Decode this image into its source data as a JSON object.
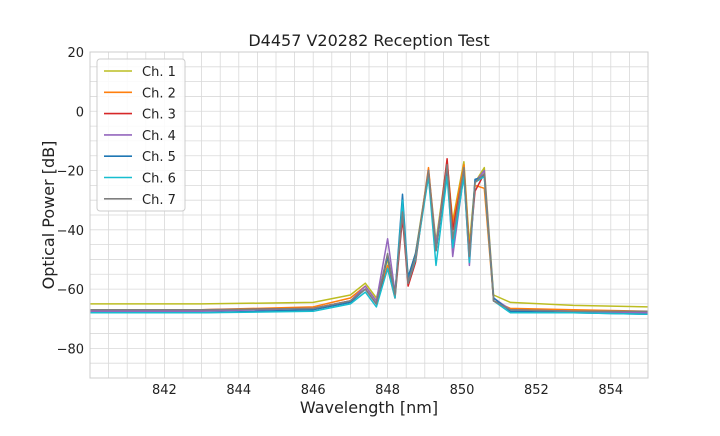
{
  "chart_data": {
    "type": "line",
    "title": "D4457 V20282 Reception Test",
    "xlabel": "Wavelength [nm]",
    "ylabel": "Optical Power [dB]",
    "xlim": [
      840,
      855
    ],
    "ylim": [
      -90,
      20
    ],
    "xticks": [
      842,
      844,
      846,
      848,
      850,
      852,
      854
    ],
    "xtick_labels": [
      "842",
      "844",
      "846",
      "848",
      "850",
      "852",
      "854"
    ],
    "yticks": [
      20,
      0,
      -20,
      -40,
      -60,
      -80
    ],
    "ytick_labels": [
      "20",
      "0",
      "−20",
      "−40",
      "−60",
      "−80"
    ],
    "grid": true,
    "legend_position": "top-left",
    "series": [
      {
        "name": "Ch. 1",
        "color": "#bcbd22",
        "x": [
          840,
          843,
          846,
          847.0,
          847.4,
          847.7,
          848.0,
          848.2,
          848.4,
          848.55,
          848.75,
          849.1,
          849.3,
          849.6,
          849.75,
          850.05,
          850.2,
          850.35,
          850.6,
          850.85,
          851.3,
          853,
          855
        ],
        "y": [
          -65,
          -65,
          -64.5,
          -62,
          -58,
          -63,
          -50,
          -61,
          -35,
          -56,
          -48,
          -20,
          -44,
          -17,
          -37,
          -17,
          -45,
          -24,
          -19,
          -62,
          -64.5,
          -65.5,
          -66
        ]
      },
      {
        "name": "Ch. 2",
        "color": "#ff7f0e",
        "x": [
          840,
          843,
          846,
          847.0,
          847.4,
          847.7,
          848.0,
          848.2,
          848.4,
          848.55,
          848.75,
          849.1,
          849.3,
          849.6,
          849.75,
          850.05,
          850.2,
          850.35,
          850.6,
          850.85,
          851.3,
          853,
          855
        ],
        "y": [
          -67,
          -67,
          -66,
          -63,
          -59,
          -64,
          -52,
          -62,
          -33,
          -58,
          -50,
          -19,
          -46,
          -18,
          -38,
          -18,
          -47,
          -25,
          -26,
          -64,
          -66.5,
          -67,
          -67.5
        ]
      },
      {
        "name": "Ch. 3",
        "color": "#d62728",
        "x": [
          840,
          843,
          846,
          847.0,
          847.4,
          847.7,
          848.0,
          848.2,
          848.4,
          848.55,
          848.75,
          849.1,
          849.3,
          849.6,
          849.75,
          850.05,
          850.2,
          850.35,
          850.6,
          850.85,
          851.3,
          853,
          855
        ],
        "y": [
          -67,
          -67,
          -66.5,
          -64,
          -60,
          -65,
          -53,
          -63,
          -36,
          -59,
          -51,
          -20,
          -47,
          -16,
          -40,
          -20,
          -48,
          -27,
          -21,
          -64,
          -67,
          -67.5,
          -68
        ]
      },
      {
        "name": "Ch. 4",
        "color": "#9467bd",
        "x": [
          840,
          843,
          846,
          847.0,
          847.4,
          847.7,
          848.0,
          848.2,
          848.4,
          848.55,
          848.75,
          849.1,
          849.3,
          849.6,
          849.75,
          850.05,
          850.2,
          850.35,
          850.6,
          850.85,
          851.3,
          853,
          855
        ],
        "y": [
          -67.5,
          -67.5,
          -66.5,
          -64,
          -59,
          -64,
          -43,
          -61,
          -34,
          -57,
          -49,
          -21,
          -45,
          -19,
          -49,
          -21,
          -52,
          -24,
          -20,
          -63,
          -67,
          -67.5,
          -68
        ]
      },
      {
        "name": "Ch. 5",
        "color": "#1f77b4",
        "x": [
          840,
          843,
          846,
          847.0,
          847.4,
          847.7,
          848.0,
          848.2,
          848.4,
          848.55,
          848.75,
          849.1,
          849.3,
          849.6,
          849.75,
          850.05,
          850.2,
          850.35,
          850.6,
          850.85,
          851.3,
          853,
          855
        ],
        "y": [
          -68,
          -68,
          -67,
          -64.5,
          -60,
          -65,
          -49,
          -62,
          -28,
          -56,
          -48,
          -22,
          -47,
          -20,
          -44,
          -21,
          -50,
          -23,
          -22,
          -63,
          -67.5,
          -68,
          -68.5
        ]
      },
      {
        "name": "Ch. 6",
        "color": "#17becf",
        "x": [
          840,
          843,
          846,
          847.0,
          847.4,
          847.7,
          848.0,
          848.2,
          848.4,
          848.55,
          848.75,
          849.1,
          849.3,
          849.6,
          849.75,
          850.05,
          850.2,
          850.35,
          850.6,
          850.85,
          851.3,
          853,
          855
        ],
        "y": [
          -68,
          -68,
          -67.5,
          -65,
          -61,
          -66,
          -53,
          -63,
          -30,
          -58,
          -50,
          -22,
          -52,
          -22,
          -46,
          -22,
          -51,
          -24,
          -22,
          -64,
          -68,
          -68,
          -68.5
        ]
      },
      {
        "name": "Ch. 7",
        "color": "#7f7f7f",
        "x": [
          840,
          843,
          846,
          847.0,
          847.4,
          847.7,
          848.0,
          848.2,
          848.4,
          848.55,
          848.75,
          849.1,
          849.3,
          849.6,
          849.75,
          850.05,
          850.2,
          850.35,
          850.6,
          850.85,
          851.3,
          853,
          855
        ],
        "y": [
          -67,
          -67,
          -66.5,
          -64,
          -60,
          -65,
          -48,
          -62,
          -34,
          -58,
          -49,
          -20,
          -47,
          -18,
          -43,
          -19,
          -49,
          -24,
          -21,
          -64,
          -67,
          -67.5,
          -67.5
        ]
      }
    ]
  }
}
